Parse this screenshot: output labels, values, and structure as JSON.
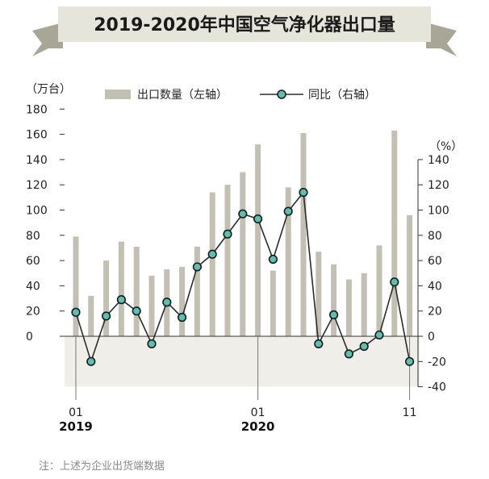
{
  "title": "2019-2020年中国空气净化器出口量",
  "note": "注：上述为企业出货端数据",
  "colors": {
    "bar": "#c2c0b3",
    "line": "#2b2b2b",
    "marker_fill": "#5bbfb2",
    "banner": "#e6e5dc",
    "banner_tail": "#a8a696",
    "neg_band": "#efeee8"
  },
  "chart_data": {
    "type": "bar",
    "categories": [
      "2019-01",
      "2019-02",
      "2019-03",
      "2019-04",
      "2019-05",
      "2019-06",
      "2019-07",
      "2019-08",
      "2019-09",
      "2019-10",
      "2019-11",
      "2019-12",
      "2020-01",
      "2020-02",
      "2020-03",
      "2020-04",
      "2020-05",
      "2020-06",
      "2020-07",
      "2020-08",
      "2020-09",
      "2020-10",
      "2020-11"
    ],
    "series": [
      {
        "name": "出口数量（左轴）",
        "type": "bar",
        "axis": "left",
        "values": [
          79,
          32,
          60,
          75,
          71,
          48,
          53,
          55,
          71,
          114,
          120,
          130,
          152,
          52,
          118,
          161,
          67,
          57,
          45,
          50,
          72,
          163,
          96
        ]
      },
      {
        "name": "同比（右轴）",
        "type": "line",
        "axis": "right",
        "values": [
          19,
          -20,
          16,
          29,
          20,
          -6,
          27,
          15,
          55,
          65,
          81,
          97,
          93,
          61,
          99,
          114,
          -6,
          17,
          -14,
          -8,
          1,
          43,
          -20
        ]
      }
    ],
    "y_left": {
      "unit": "（万台）",
      "ylim": [
        0,
        180
      ],
      "ticks": [
        "0",
        "20",
        "40",
        "60",
        "80",
        "100",
        "120",
        "140",
        "160",
        "180"
      ]
    },
    "y_right": {
      "unit": "（%）",
      "ylim": [
        -40,
        140
      ],
      "ticks": [
        "-40",
        "-20",
        "0",
        "20",
        "40",
        "60",
        "80",
        "100",
        "120",
        "140"
      ]
    },
    "x_ticks": [
      {
        "label": "01",
        "year": "2019"
      },
      {
        "label": "01",
        "year": "2020"
      },
      {
        "label": "11",
        "year": ""
      }
    ],
    "legend": {
      "position": "top"
    }
  }
}
